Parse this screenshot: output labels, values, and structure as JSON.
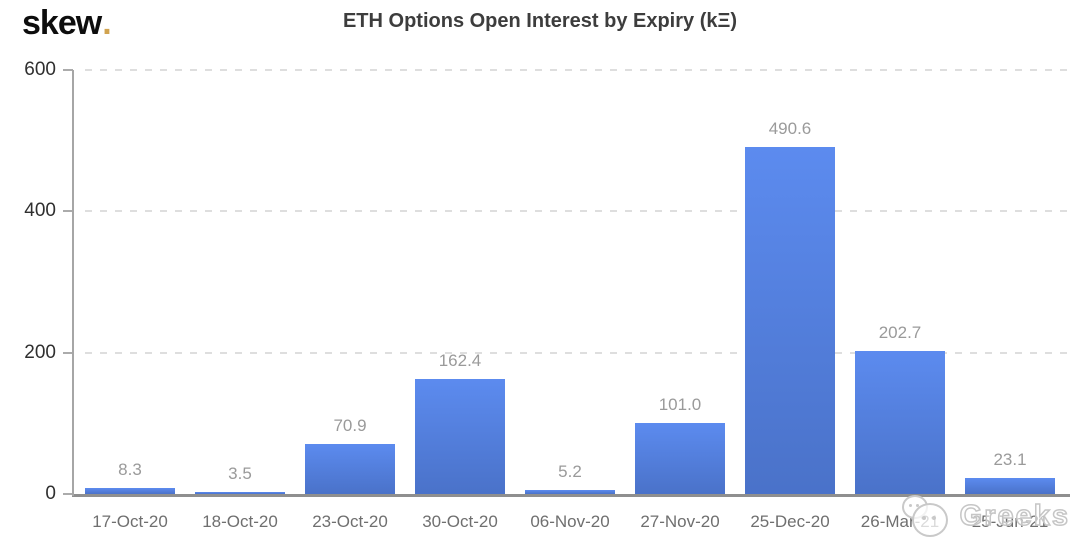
{
  "logo": {
    "text": "skew",
    "dot": "."
  },
  "title": "ETH Options Open Interest by Expiry (kΞ)",
  "watermark": {
    "text": "Greeks",
    "icon": "wechat-icon"
  },
  "chart_data": {
    "type": "bar",
    "title": "ETH Options Open Interest by Expiry (kΞ)",
    "categories": [
      "17-Oct-20",
      "18-Oct-20",
      "23-Oct-20",
      "30-Oct-20",
      "06-Nov-20",
      "27-Nov-20",
      "25-Dec-20",
      "26-Mar-21",
      "25-Jun-21"
    ],
    "values": [
      8.3,
      3.5,
      70.9,
      162.4,
      5.2,
      101.0,
      490.6,
      202.7,
      23.1
    ],
    "xlabel": "",
    "ylabel": "",
    "ylim": [
      0,
      600
    ],
    "yticks": [
      0,
      200,
      400,
      600
    ],
    "grid": "horizontal-dashed",
    "legend": "none",
    "bar_color_top": "#5c8bef",
    "bar_color_bottom": "#4a72c9",
    "label_color": "#9a9a9a"
  }
}
